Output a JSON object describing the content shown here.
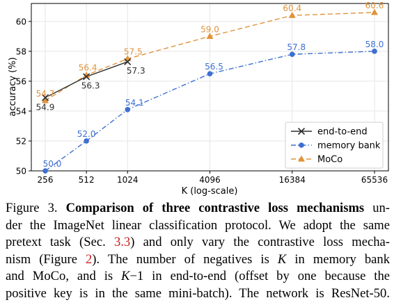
{
  "chart_data": {
    "type": "line",
    "xlabel": "K (log-scale)",
    "ylabel": "accuracy (%)",
    "x_scale": "log",
    "x": [
      256,
      512,
      1024,
      4096,
      16384,
      65536
    ],
    "x_tick_labels": [
      "256",
      "512",
      "1024",
      "4096",
      "16384",
      "65536"
    ],
    "ylim": [
      50,
      61.2
    ],
    "y_ticks": [
      50,
      52,
      54,
      56,
      58,
      60
    ],
    "y_tick_labels": [
      "50",
      "52",
      "54",
      "56",
      "58",
      "60"
    ],
    "grid": true,
    "legend_position": "lower-right",
    "series": [
      {
        "name": "end-to-end",
        "color": "#2f2f2f",
        "marker": "x",
        "linestyle": "solid",
        "x": [
          256,
          512,
          1024
        ],
        "values": [
          54.9,
          56.3,
          57.3
        ],
        "labels": [
          "54.9",
          "56.3",
          "57.3"
        ]
      },
      {
        "name": "memory bank",
        "color": "#3d6fd1",
        "marker": "circle",
        "linestyle": "dash-dot",
        "x": [
          256,
          512,
          1024,
          4096,
          16384,
          65536
        ],
        "values": [
          50.0,
          52.0,
          54.1,
          56.5,
          57.8,
          58.0
        ],
        "labels": [
          "50.0",
          "52.0",
          "54.1",
          "56.5",
          "57.8",
          "58.0"
        ]
      },
      {
        "name": "MoCo",
        "color": "#e0933a",
        "marker": "triangle",
        "linestyle": "dashed",
        "x": [
          256,
          512,
          1024,
          4096,
          16384,
          65536
        ],
        "values": [
          54.7,
          56.4,
          57.5,
          59.0,
          60.4,
          60.6
        ],
        "labels": [
          "54.7",
          "56.4",
          "57.5",
          "59.0",
          "60.4",
          "60.6"
        ]
      }
    ]
  },
  "caption": {
    "line1_prefix": "Figure 3. ",
    "line1_bold": "Comparison of three contrastive loss mechanisms",
    "line1_suffix": " un-",
    "line2": "der the ImageNet linear classification protocol. We adopt the same",
    "line3_a": "pretext task (Sec. ",
    "line3_ref": "3.3",
    "line3_b": ") and only vary the contrastive loss mecha-",
    "line4_a": "nism (Figure ",
    "line4_ref": "2",
    "line4_b": "). The number of negatives is ",
    "line4_k": "K",
    "line4_c": " in memory bank",
    "line5_a": "and MoCo, and is ",
    "line5_k": "K",
    "line5_b": "−1 in end-to-end (offset by one because the",
    "line6": "positive key is in the same mini-batch). The network is ResNet-50."
  }
}
